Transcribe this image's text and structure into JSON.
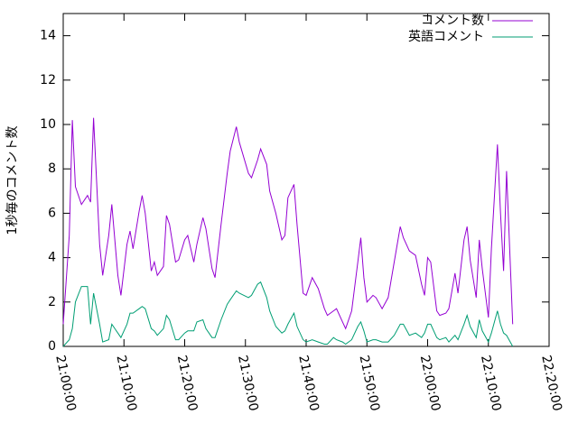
{
  "chart_data": {
    "type": "line",
    "ylabel": "1秒毎のコメント数",
    "x": [
      "21:00:00",
      "21:01:00",
      "21:01:30",
      "21:02:00",
      "21:03:00",
      "21:04:00",
      "21:04:30",
      "21:05:00",
      "21:06:00",
      "21:06:30",
      "21:07:30",
      "21:08:00",
      "21:09:00",
      "21:09:30",
      "21:10:30",
      "21:11:00",
      "21:11:30",
      "21:12:30",
      "21:13:00",
      "21:13:30",
      "21:14:30",
      "21:15:00",
      "21:15:30",
      "21:16:30",
      "21:17:00",
      "21:17:30",
      "21:18:30",
      "21:19:00",
      "21:20:00",
      "21:20:30",
      "21:21:30",
      "21:22:00",
      "21:23:00",
      "21:23:30",
      "21:24:30",
      "21:25:00",
      "21:26:00",
      "21:27:00",
      "21:27:30",
      "21:28:30",
      "21:29:00",
      "21:30:30",
      "21:31:00",
      "21:32:00",
      "21:32:30",
      "21:33:30",
      "21:34:00",
      "21:35:00",
      "21:36:00",
      "21:36:30",
      "21:37:00",
      "21:38:00",
      "21:38:30",
      "21:39:30",
      "21:40:00",
      "21:41:00",
      "21:42:00",
      "21:43:00",
      "21:43:30",
      "21:44:30",
      "21:45:00",
      "21:46:00",
      "21:46:30",
      "21:47:30",
      "21:48:30",
      "21:49:00",
      "21:49:30",
      "21:50:00",
      "21:51:00",
      "21:51:30",
      "21:52:30",
      "21:53:30",
      "21:54:30",
      "21:55:30",
      "21:56:00",
      "21:57:00",
      "21:58:00",
      "21:59:00",
      "21:59:30",
      "22:00:00",
      "22:00:30",
      "22:01:30",
      "22:02:00",
      "22:03:00",
      "22:03:30",
      "22:04:30",
      "22:05:00",
      "22:06:00",
      "22:06:30",
      "22:07:00",
      "22:08:00",
      "22:08:30",
      "22:09:00",
      "22:10:00",
      "22:10:30",
      "22:11:30",
      "22:12:00",
      "22:12:30",
      "22:13:00",
      "22:14:00"
    ],
    "series": [
      {
        "name": "コメント数",
        "color": "#9400d3",
        "values": [
          1.0,
          5,
          10.2,
          7.2,
          6.4,
          6.8,
          6.5,
          10.3,
          4.6,
          3.2,
          5,
          6.4,
          3.2,
          2.3,
          4.6,
          5.2,
          4.4,
          6.1,
          6.8,
          6.0,
          3.4,
          3.8,
          3.2,
          3.6,
          5.9,
          5.5,
          3.8,
          3.9,
          4.8,
          5.0,
          3.8,
          4.6,
          5.8,
          5.3,
          3.5,
          3.1,
          5.5,
          7.8,
          8.8,
          9.9,
          9.2,
          7.8,
          7.6,
          8.4,
          8.9,
          8.2,
          7.0,
          6.0,
          4.8,
          5.0,
          6.7,
          7.3,
          5.5,
          2.4,
          2.3,
          3.1,
          2.6,
          1.7,
          1.4,
          1.6,
          1.7,
          1.1,
          0.8,
          1.6,
          3.8,
          4.9,
          3.1,
          2.0,
          2.3,
          2.2,
          1.7,
          2.2,
          3.8,
          5.4,
          4.9,
          4.3,
          4.1,
          2.8,
          2.3,
          4.0,
          3.8,
          1.6,
          1.4,
          1.5,
          1.7,
          3.3,
          2.4,
          4.8,
          5.4,
          3.9,
          2.2,
          4.8,
          3.5,
          1.3,
          4.4,
          9.1,
          6.0,
          3.4,
          7.9,
          1.0
        ]
      },
      {
        "name": "英語コメント",
        "color": "#009e73",
        "values": [
          0.0,
          0.3,
          0.8,
          2.0,
          2.7,
          2.7,
          1.0,
          2.4,
          1.0,
          0.2,
          0.3,
          1.0,
          0.6,
          0.4,
          1.0,
          1.5,
          1.5,
          1.7,
          1.8,
          1.7,
          0.8,
          0.7,
          0.5,
          0.8,
          1.4,
          1.2,
          0.3,
          0.3,
          0.6,
          0.7,
          0.7,
          1.1,
          1.2,
          0.8,
          0.4,
          0.4,
          1.2,
          1.9,
          2.1,
          2.5,
          2.4,
          2.2,
          2.3,
          2.8,
          2.9,
          2.2,
          1.6,
          0.9,
          0.6,
          0.7,
          1.0,
          1.5,
          0.9,
          0.3,
          0.2,
          0.3,
          0.2,
          0.1,
          0.1,
          0.4,
          0.3,
          0.2,
          0.1,
          0.3,
          0.9,
          1.1,
          0.7,
          0.2,
          0.3,
          0.3,
          0.2,
          0.2,
          0.5,
          1.0,
          1.0,
          0.5,
          0.6,
          0.4,
          0.6,
          1.0,
          1.0,
          0.4,
          0.3,
          0.4,
          0.2,
          0.5,
          0.3,
          1.0,
          1.4,
          0.9,
          0.4,
          1.2,
          0.7,
          0.2,
          0.6,
          1.6,
          1.0,
          0.6,
          0.5,
          0.0
        ]
      }
    ],
    "xlim": [
      "21:00:00",
      "22:20:00"
    ],
    "xticks": [
      "21:00:00",
      "21:10:00",
      "21:20:00",
      "21:30:00",
      "21:40:00",
      "21:50:00",
      "22:00:00",
      "22:10:00",
      "22:20:00"
    ],
    "ylim": [
      0,
      15
    ],
    "yticks": [
      0,
      2,
      4,
      6,
      8,
      10,
      12,
      14
    ],
    "legend": "top-right"
  }
}
